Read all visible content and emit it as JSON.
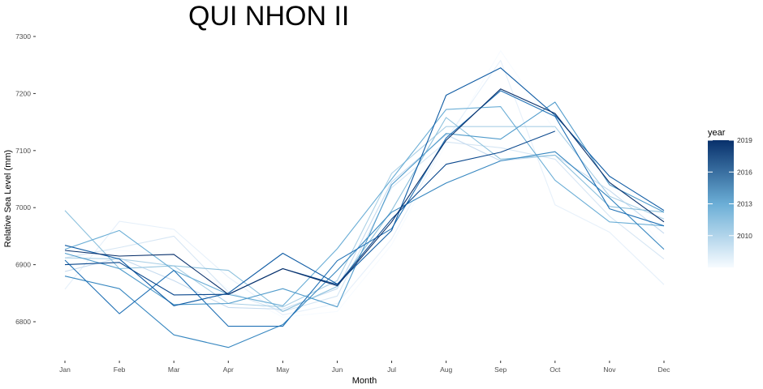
{
  "chart_data": {
    "type": "line",
    "title": "QUI NHON II",
    "xlabel": "Month",
    "ylabel": "Relative Sea Level (mm)",
    "categories": [
      "Jan",
      "Feb",
      "Mar",
      "Apr",
      "May",
      "Jun",
      "Jul",
      "Aug",
      "Sep",
      "Oct",
      "Nov",
      "Dec"
    ],
    "ylim": [
      6740,
      7310
    ],
    "yticks": [
      6800,
      6900,
      7000,
      7100,
      7200,
      7300
    ],
    "grid": false,
    "legend": {
      "title": "year",
      "position": "right",
      "type": "continuous",
      "range": [
        2007,
        2019
      ],
      "ticks": [
        2010,
        2013,
        2016,
        2019
      ],
      "color_low": "#f7fbff",
      "color_high": "#08306b"
    },
    "series": [
      {
        "year": 2007,
        "values": [
          6922,
          6925,
          6918,
          6858,
          6808,
          6818,
          6935,
          7112,
          7275,
          7135,
          7045,
          6930
        ]
      },
      {
        "year": 2008,
        "values": [
          6857,
          6976,
          6962,
          6878,
          6812,
          6832,
          6945,
          7120,
          7258,
          7005,
          6957,
          6865
        ]
      },
      {
        "year": 2009,
        "values": [
          6912,
          6930,
          6950,
          6852,
          6818,
          6845,
          7035,
          7115,
          7105,
          7085,
          6985,
          6910
        ]
      },
      {
        "year": 2010,
        "values": [
          6888,
          6912,
          6872,
          6825,
          6822,
          6858,
          7045,
          7128,
          7082,
          7092,
          7030,
          6955
        ]
      },
      {
        "year": 2011,
        "values": [
          6912,
          6910,
          6898,
          6832,
          6826,
          6872,
          7060,
          7142,
          7142,
          7142,
          7020,
          6980
        ]
      },
      {
        "year": 2012,
        "values": [
          6995,
          6893,
          6898,
          6890,
          6818,
          6862,
          6995,
          7158,
          7085,
          7092,
          7002,
          6992
        ]
      },
      {
        "year": 2013,
        "values": [
          6927,
          6960,
          6890,
          6848,
          6828,
          6928,
          7050,
          7172,
          7177,
          7048,
          6975,
          6968
        ]
      },
      {
        "year": 2014,
        "values": [
          6920,
          6893,
          6830,
          6832,
          6858,
          6826,
          7040,
          7130,
          7120,
          7185,
          7040,
          6992
        ]
      },
      {
        "year": 2015,
        "values": [
          6880,
          6858,
          6777,
          6755,
          6795,
          6890,
          6992,
          7043,
          7082,
          7098,
          7017,
          6927
        ]
      },
      {
        "year": 2016,
        "values": [
          6908,
          6814,
          6890,
          6792,
          6792,
          6907,
          6963,
          7122,
          7205,
          7160,
          6998,
          6968
        ]
      },
      {
        "year": 2017,
        "values": [
          6934,
          6910,
          6828,
          6850,
          6920,
          6866,
          6960,
          7197,
          7245,
          7162,
          7055,
          6995
        ]
      },
      {
        "year": 2018,
        "values": [
          6900,
          6904,
          6847,
          6848,
          6893,
          6865,
          6980,
          7076,
          7097,
          7134,
          null,
          null
        ]
      },
      {
        "year": 2019,
        "values": [
          6925,
          6915,
          6918,
          6848,
          6893,
          6863,
          6975,
          7118,
          7208,
          7165,
          7044,
          6975
        ]
      }
    ]
  }
}
